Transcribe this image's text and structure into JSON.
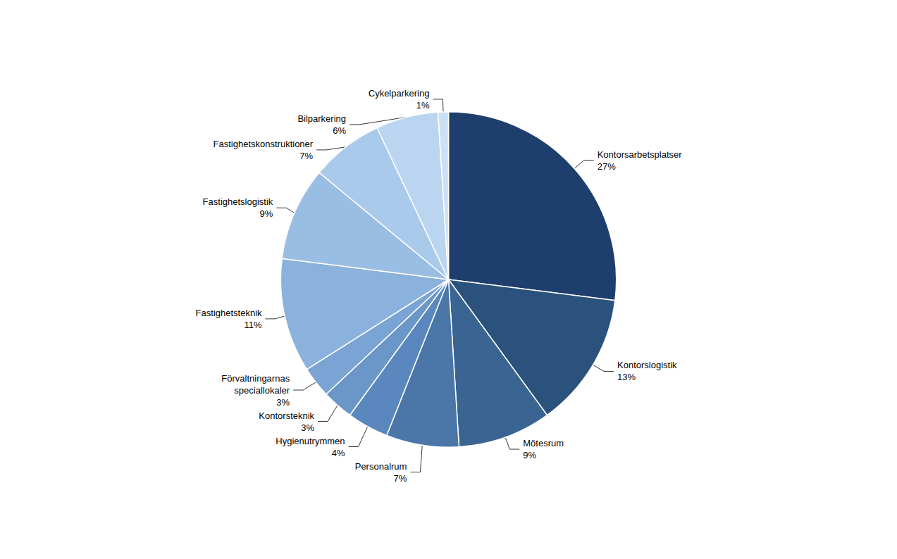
{
  "chart_data": {
    "type": "pie",
    "categories": [
      "Kontorsarbetsplatser",
      "Kontorslogistik",
      "Mötesrum",
      "Personalrum",
      "Hygienutrymmen",
      "Kontorsteknik",
      "Förvaltningarnas\nspeciallokaler",
      "Fastighetsteknik",
      "Fastighetslogistik",
      "Fastighetskonstruktioner",
      "Bilparkering",
      "Cykelparkering"
    ],
    "values": [
      27,
      13,
      9,
      7,
      4,
      3,
      3,
      11,
      9,
      7,
      6,
      1
    ],
    "value_labels": [
      "27%",
      "13%",
      "9%",
      "7%",
      "4%",
      "3%",
      "3%",
      "11%",
      "9%",
      "7%",
      "6%",
      "1%"
    ],
    "colors": [
      "#1e3f6d",
      "#2a527d",
      "#3a6491",
      "#4a76a8",
      "#5a88be",
      "#6a96c8",
      "#7aa4d4",
      "#8ab2dc",
      "#9abde4",
      "#aacaec",
      "#bbd5f0",
      "#cce0f5"
    ],
    "data_labels": true
  }
}
